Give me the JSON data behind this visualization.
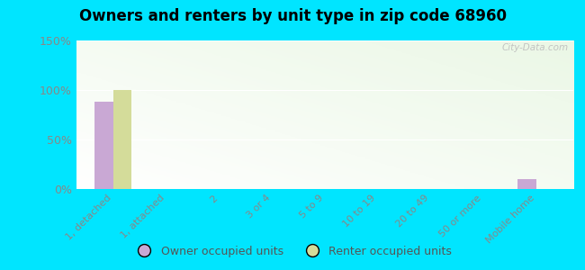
{
  "title": "Owners and renters by unit type in zip code 68960",
  "categories": [
    "1, detached",
    "1, attached",
    "2",
    "3 or 4",
    "5 to 9",
    "10 to 19",
    "20 to 49",
    "50 or more",
    "Mobile home"
  ],
  "owner_values": [
    88,
    0,
    0,
    0,
    0,
    0,
    0,
    0,
    10
  ],
  "renter_values": [
    100,
    0,
    0,
    0,
    0,
    0,
    0,
    0,
    0
  ],
  "owner_color": "#c9a8d4",
  "renter_color": "#d4dc9a",
  "background_outer": "#00e5ff",
  "ylim": [
    0,
    150
  ],
  "yticks": [
    0,
    50,
    100,
    150
  ],
  "ytick_labels": [
    "0%",
    "50%",
    "100%",
    "150%"
  ],
  "bar_width": 0.35,
  "legend_owner": "Owner occupied units",
  "legend_renter": "Renter occupied units",
  "watermark": "City-Data.com",
  "grid_color": "#e0e0e0",
  "tick_label_color": "#888888"
}
